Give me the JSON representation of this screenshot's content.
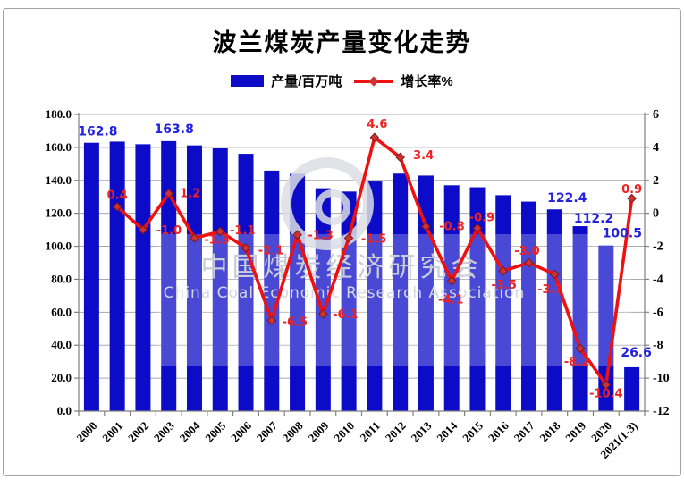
{
  "title": "波兰煤炭产量变化走势",
  "legend": {
    "bar_label": "产量/百万吨",
    "line_label": "增长率%"
  },
  "watermark": {
    "cn": "中国煤炭经济研究会",
    "en": "China Coal Economic Research Association"
  },
  "colors": {
    "bar": "#0c0cc8",
    "bar_label": "#2323dd",
    "line": "#ee1111",
    "marker_fill": "#cc3333",
    "marker_edge": "#7a1515",
    "line_label": "#ee2222",
    "grid": "#a9a9a9",
    "axis": "#808080",
    "tick_text": "#000000",
    "watermark_text": "#c9cdd5",
    "frame_border": "#a0a4aa"
  },
  "chart_data": {
    "type": "combo_bar_line",
    "categories": [
      "2000",
      "2001",
      "2002",
      "2003",
      "2004",
      "2005",
      "2006",
      "2007",
      "2008",
      "2009",
      "2010",
      "2011",
      "2012",
      "2013",
      "2014",
      "2015",
      "2016",
      "2017",
      "2018",
      "2019",
      "2020",
      "2021(1-3)"
    ],
    "series": [
      {
        "name": "产量/百万吨",
        "type": "bar",
        "axis": "left",
        "values": [
          162.8,
          163.5,
          161.9,
          163.8,
          161.2,
          159.4,
          156.1,
          145.9,
          144.0,
          135.2,
          133.2,
          139.3,
          144.1,
          142.9,
          137.0,
          135.8,
          131.0,
          127.1,
          122.4,
          112.2,
          100.5,
          26.6
        ],
        "value_labels_shown": [
          {
            "index": 0,
            "text": "162.8",
            "dx": 7,
            "dy": -12
          },
          {
            "index": 3,
            "text": "163.8",
            "dx": 6,
            "dy": -13
          },
          {
            "index": 18,
            "text": "122.4",
            "dx": 14,
            "dy": -12
          },
          {
            "index": 19,
            "text": "112.2",
            "dx": 15,
            "dy": -8
          },
          {
            "index": 20,
            "text": "100.5",
            "dx": 18,
            "dy": -13
          },
          {
            "index": 21,
            "text": "26.6",
            "dx": 5,
            "dy": -16
          }
        ]
      },
      {
        "name": "增长率%",
        "type": "line",
        "axis": "right",
        "values": [
          null,
          0.4,
          -1.0,
          1.2,
          -1.5,
          -1.1,
          -2.1,
          -6.5,
          -1.3,
          -6.1,
          -1.5,
          4.6,
          3.4,
          -0.8,
          -4.1,
          -0.9,
          -3.5,
          -3.0,
          -3.7,
          -8.2,
          -10.4,
          0.9
        ],
        "label_offsets": [
          null,
          [
            0,
            -13
          ],
          [
            29,
            1
          ],
          [
            24,
            0
          ],
          [
            25,
            2
          ],
          [
            25,
            -1
          ],
          [
            28,
            3
          ],
          [
            26,
            2
          ],
          [
            26,
            1
          ],
          [
            25,
            1
          ],
          [
            28,
            1
          ],
          [
            3,
            -15
          ],
          [
            26,
            -2
          ],
          [
            29,
            0
          ],
          [
            -1,
            21
          ],
          [
            5,
            -12
          ],
          [
            1,
            16
          ],
          [
            -2,
            -13
          ],
          [
            -5,
            17
          ],
          [
            -4,
            15
          ],
          [
            0,
            10
          ],
          [
            0,
            -10
          ]
        ]
      }
    ],
    "left_axis": {
      "min": 0,
      "max": 180,
      "step": 20,
      "decimals": 1
    },
    "right_axis": {
      "min": -12,
      "max": 6,
      "step": 2,
      "decimals": 0
    },
    "grid": true,
    "legend_position": "top"
  }
}
